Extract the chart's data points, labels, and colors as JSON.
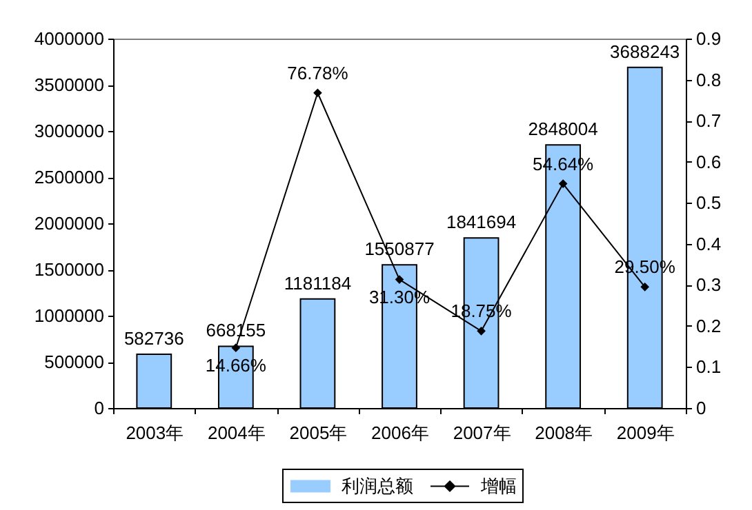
{
  "chart_data": {
    "type": "bar",
    "categories": [
      "2003年",
      "2004年",
      "2005年",
      "2006年",
      "2007年",
      "2008年",
      "2009年"
    ],
    "series": [
      {
        "name": "利润总额",
        "color": "#99ccff",
        "values": [
          582736,
          668155,
          1181184,
          1550877,
          1841694,
          2848004,
          3688243
        ],
        "value_labels": [
          "582736",
          "668155",
          "1181184",
          "1550877",
          "1841694",
          "2848004",
          "3688243"
        ]
      },
      {
        "name": "增幅",
        "type": "line",
        "axis": "y2",
        "color": "#000000",
        "values": [
          null,
          0.1466,
          0.7678,
          0.313,
          0.1875,
          0.5464,
          0.295
        ],
        "value_labels": [
          null,
          "14.66%",
          "76.78%",
          "31.30%",
          "18.75%",
          "54.64%",
          "29.50%"
        ]
      }
    ],
    "ylim": [
      0,
      4000000
    ],
    "yticks": [
      0,
      500000,
      1000000,
      1500000,
      2000000,
      2500000,
      3000000,
      3500000,
      4000000
    ],
    "y2lim": [
      0,
      0.9
    ],
    "y2ticks": [
      0,
      0.1,
      0.2,
      0.3,
      0.4,
      0.5,
      0.6,
      0.7,
      0.8,
      0.9
    ],
    "grid": false,
    "legend": "bottom",
    "marker": "diamond",
    "line_style": "solid"
  }
}
